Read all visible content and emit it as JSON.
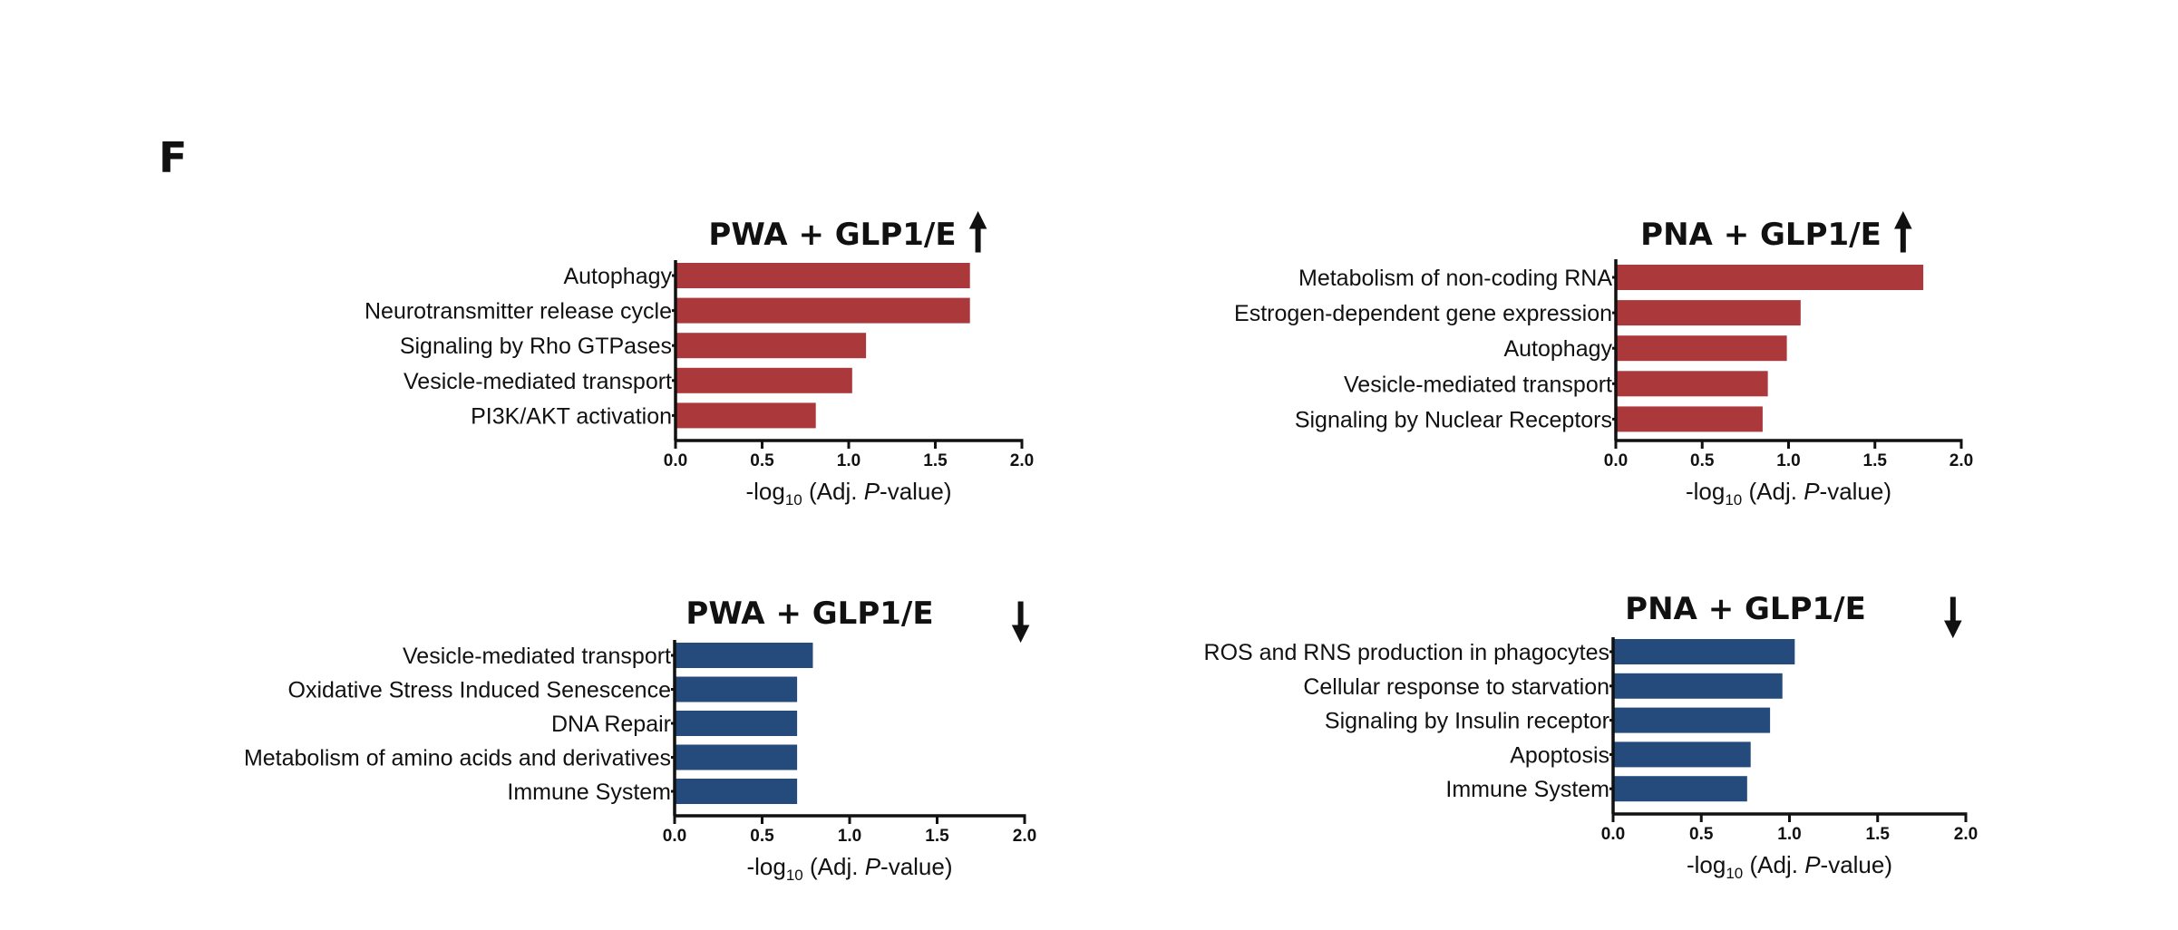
{
  "panel_letter": "F",
  "colors": {
    "up_bar": "#ab393c",
    "down_bar": "#254b7d",
    "text": "#111111"
  },
  "chart_data": [
    {
      "type": "bar",
      "orientation": "horizontal",
      "title": "PWA + GLP1/E",
      "direction": "up",
      "direction_icon": "arrow-up-icon",
      "categories": [
        "Autophagy",
        "Neurotransmitter release cycle",
        "Signaling by Rho GTPases",
        "Vesicle-mediated transport",
        "PI3K/AKT activation"
      ],
      "values": [
        1.7,
        1.7,
        1.1,
        1.02,
        0.81
      ],
      "xlabel_prefix": "-log",
      "xlabel_sub": "10",
      "xlabel_mid": " (Adj. ",
      "xlabel_italic": "P",
      "xlabel_suffix": "-value)",
      "xlim": [
        0,
        2.0
      ],
      "xticks": [
        0,
        0.5,
        1.0,
        1.5,
        2.0
      ],
      "xtick_labels": [
        "0.0",
        "0.5",
        "1.0",
        "1.5",
        "2.0"
      ],
      "color": "#ab393c",
      "grid": false
    },
    {
      "type": "bar",
      "orientation": "horizontal",
      "title": "PNA + GLP1/E",
      "direction": "up",
      "direction_icon": "arrow-up-icon",
      "categories": [
        "Metabolism of non-coding RNA",
        "Estrogen-dependent  gene  expression",
        "Autophagy",
        "Vesicle-mediated  transport",
        "Signaling  by  Nuclear Receptors"
      ],
      "values": [
        1.78,
        1.07,
        0.99,
        0.88,
        0.85
      ],
      "xlabel_prefix": "-log",
      "xlabel_sub": "10",
      "xlabel_mid": " (Adj. ",
      "xlabel_italic": "P",
      "xlabel_suffix": "-value)",
      "xlim": [
        0,
        2.0
      ],
      "xticks": [
        0,
        0.5,
        1.0,
        1.5,
        2.0
      ],
      "xtick_labels": [
        "0.0",
        "0.5",
        "1.0",
        "1.5",
        "2.0"
      ],
      "color": "#ab393c",
      "grid": false
    },
    {
      "type": "bar",
      "orientation": "horizontal",
      "title": "PWA + GLP1/E",
      "direction": "down",
      "direction_icon": "arrow-down-icon",
      "categories": [
        "Vesicle-mediated  transport",
        "Oxidative Stress Induced Senescence",
        "DNA Repair",
        "Metabolism of amino acids and derivatives",
        "Immune System"
      ],
      "values": [
        0.79,
        0.7,
        0.7,
        0.7,
        0.7
      ],
      "xlabel_prefix": "-log",
      "xlabel_sub": "10",
      "xlabel_mid": " (Adj. ",
      "xlabel_italic": "P",
      "xlabel_suffix": "-value)",
      "xlim": [
        0,
        2.0
      ],
      "xticks": [
        0,
        0.5,
        1.0,
        1.5,
        2.0
      ],
      "xtick_labels": [
        "0.0",
        "0.5",
        "1.0",
        "1.5",
        "2.0"
      ],
      "color": "#254b7d",
      "grid": false
    },
    {
      "type": "bar",
      "orientation": "horizontal",
      "title": "PNA + GLP1/E",
      "direction": "down",
      "direction_icon": "arrow-down-icon",
      "categories": [
        "ROS and RNS production in phagocytes",
        "Cellular response to starvation",
        "Signaling by Insulin receptor",
        "Apoptosis",
        "Immune System"
      ],
      "values": [
        1.03,
        0.96,
        0.89,
        0.78,
        0.76
      ],
      "xlabel_prefix": "-log",
      "xlabel_sub": "10",
      "xlabel_mid": " (Adj. ",
      "xlabel_italic": "P",
      "xlabel_suffix": "-value)",
      "xlim": [
        0,
        2.0
      ],
      "xticks": [
        0,
        0.5,
        1.0,
        1.5,
        2.0
      ],
      "xtick_labels": [
        "0.0",
        "0.5",
        "1.0",
        "1.5",
        "2.0"
      ],
      "color": "#254b7d",
      "grid": false
    }
  ]
}
